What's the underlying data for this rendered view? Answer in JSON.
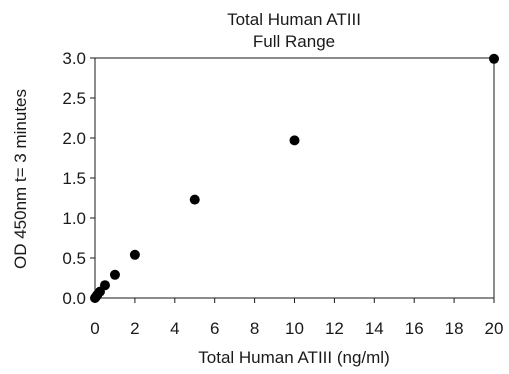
{
  "chart_data": {
    "type": "scatter",
    "title": "Total Human ATIII",
    "subtitle": "Full Range",
    "xlabel": "Total Human  ATIII (ng/ml)",
    "ylabel": "OD 450nm t= 3 minutes",
    "xlim": [
      0,
      20
    ],
    "ylim": [
      0,
      3.0
    ],
    "xticks": [
      0,
      2,
      4,
      6,
      8,
      10,
      12,
      14,
      16,
      18,
      20
    ],
    "yticks": [
      0.0,
      0.5,
      1.0,
      1.5,
      2.0,
      2.5,
      3.0
    ],
    "xtick_labels": [
      "0",
      "2",
      "4",
      "6",
      "8",
      "10",
      "12",
      "14",
      "16",
      "18",
      "20"
    ],
    "ytick_labels": [
      "0.0",
      "0.5",
      "1.0",
      "1.5",
      "2.0",
      "2.5",
      "3.0"
    ],
    "grid": false,
    "marker_color": "#000000",
    "points": [
      {
        "x": 0.0,
        "y": 0.0
      },
      {
        "x": 0.06,
        "y": 0.02
      },
      {
        "x": 0.12,
        "y": 0.04
      },
      {
        "x": 0.25,
        "y": 0.08
      },
      {
        "x": 0.5,
        "y": 0.16
      },
      {
        "x": 1.0,
        "y": 0.29
      },
      {
        "x": 2.0,
        "y": 0.54
      },
      {
        "x": 5.0,
        "y": 1.23
      },
      {
        "x": 10.0,
        "y": 1.97
      },
      {
        "x": 20.0,
        "y": 2.99
      }
    ]
  }
}
